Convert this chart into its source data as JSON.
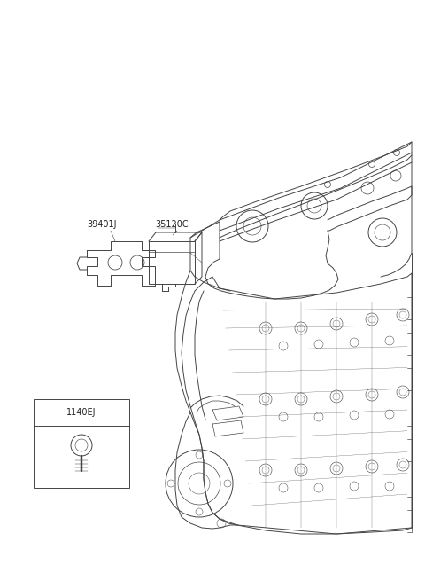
{
  "background_color": "#ffffff",
  "line_color": "#444444",
  "text_color": "#222222",
  "fig_width": 4.8,
  "fig_height": 6.55,
  "dpi": 100,
  "font_size_labels": 7.0,
  "font_size_box": 7.0,
  "label_39401J": "39401J",
  "label_35120C": "35120C",
  "label_1140EJ": "1140EJ"
}
